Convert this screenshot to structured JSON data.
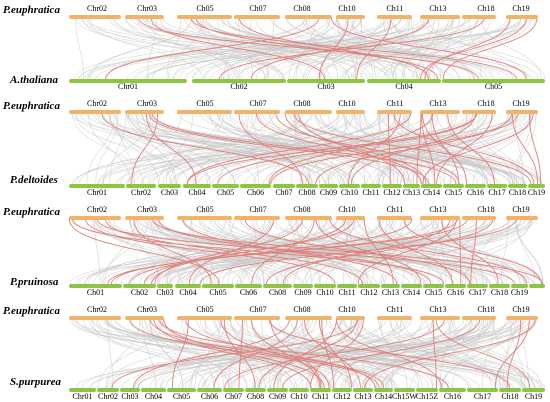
{
  "panels": [
    {
      "top_species": "P.euphratica",
      "bottom_species": "A.thaliana",
      "top_chromosomes": [
        "Chr02",
        "Chr03",
        "Ch05",
        "Ch07",
        "Ch08",
        "Ch10",
        "Ch11",
        "Ch13",
        "Ch18",
        "Ch19"
      ],
      "bottom_chromosomes": [
        "Chr01",
        "Ch02",
        "Ch03",
        "Ch04",
        "Ch05"
      ],
      "gray_links": 140,
      "red_links": 14
    },
    {
      "top_species": "P.euphratica",
      "bottom_species": "P.deltoides",
      "top_chromosomes": [
        "Chr02",
        "Chr03",
        "Ch05",
        "Ch07",
        "Ch08",
        "Ch10",
        "Ch11",
        "Ch13",
        "Ch18",
        "Ch19"
      ],
      "bottom_chromosomes": [
        "Chr01",
        "Chr02",
        "Ch03",
        "Ch04",
        "Ch05",
        "Ch06",
        "Ch07",
        "Ch08",
        "Ch09",
        "Ch10",
        "Ch11",
        "Ch12",
        "Ch13",
        "Ch14",
        "Ch15",
        "Ch16",
        "Ch17",
        "Ch18",
        "Ch19"
      ],
      "gray_links": 170,
      "red_links": 30
    },
    {
      "top_species": "P.euphratica",
      "bottom_species": "P.pruinosa",
      "top_chromosomes": [
        "Chr02",
        "Chr03",
        "Ch05",
        "Ch07",
        "Ch08",
        "Ch10",
        "Ch11",
        "Ch13",
        "Ch18",
        "Ch19"
      ],
      "bottom_chromosomes": [
        "Ch01",
        "Ch02",
        "Ch03",
        "Ch04",
        "Ch05",
        "Ch06",
        "Ch08",
        "Ch09",
        "Ch10",
        "Ch11",
        "Ch12",
        "Ch13",
        "Ch14",
        "Ch15",
        "Ch16",
        "Ch17",
        "Ch18",
        "Ch19"
      ],
      "gray_links": 170,
      "red_links": 30
    },
    {
      "top_species": "P.euphratica",
      "bottom_species": "S.purpurea",
      "top_chromosomes": [
        "Chr02",
        "Chr03",
        "Ch05",
        "Ch07",
        "Ch08",
        "Ch10",
        "Ch11",
        "Ch13",
        "Ch18",
        "Ch19"
      ],
      "bottom_chromosomes": [
        "Chr01",
        "Chr02",
        "Ch03",
        "Ch04",
        "Ch05",
        "Ch06",
        "Ch07",
        "Ch08",
        "Ch09",
        "Ch10",
        "Ch11",
        "Ch12",
        "Ch13",
        "Ch14",
        "Ch15W",
        "Ch15Z",
        "Ch16",
        "Ch17",
        "Ch18",
        "Ch19"
      ],
      "gray_links": 170,
      "red_links": 30
    }
  ],
  "colors": {
    "top_bar": "#f0b36a",
    "bottom_bar": "#8cc640",
    "gray_link": "#c8c8c8",
    "red_link": "#e0807a"
  }
}
